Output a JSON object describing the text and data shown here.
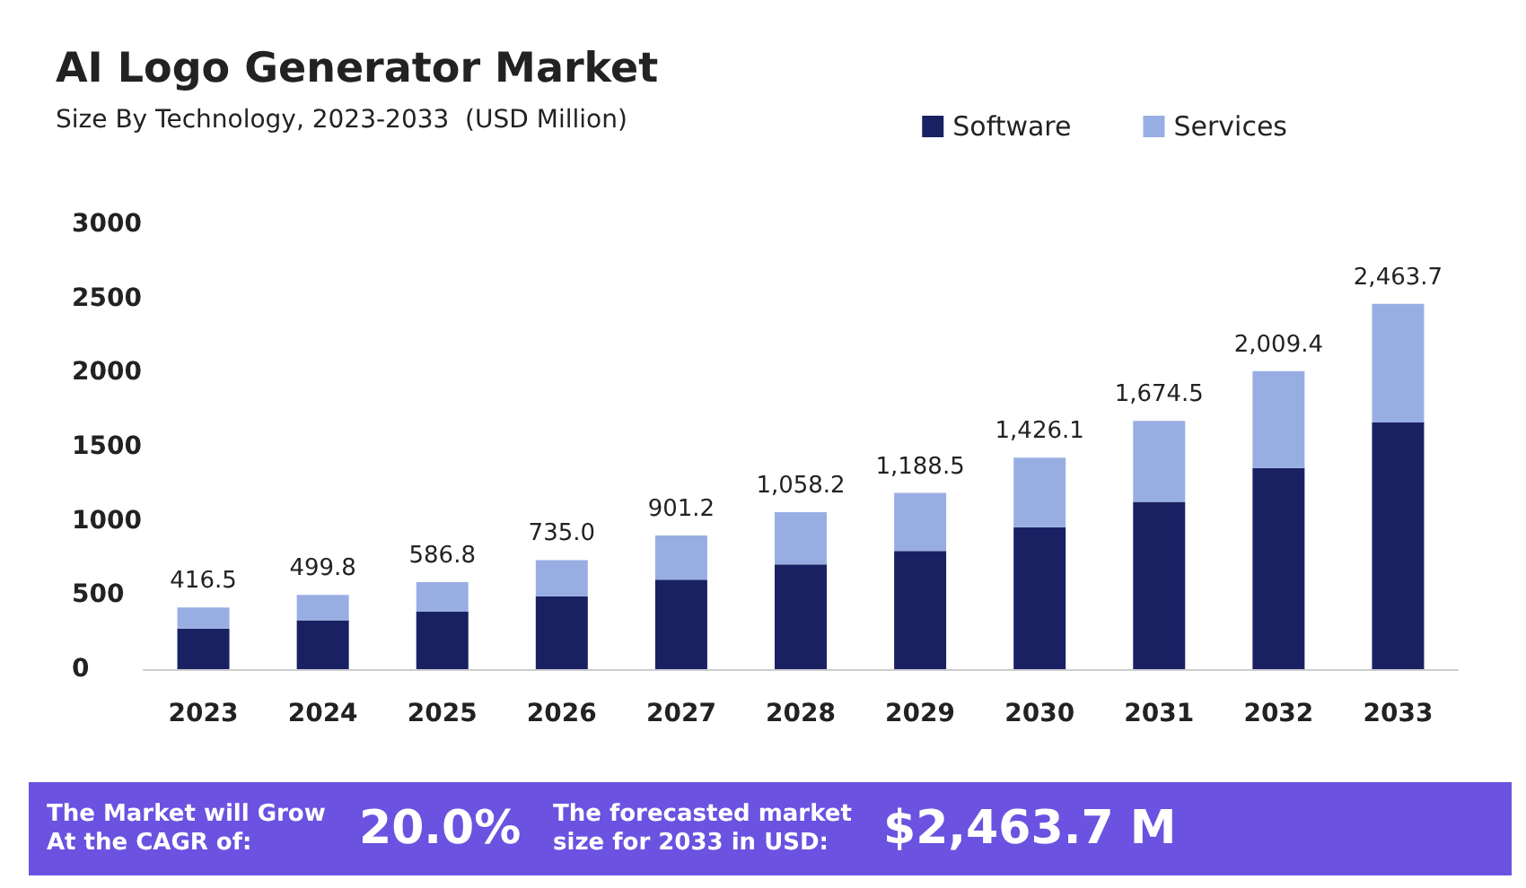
{
  "chart_data": {
    "type": "bar",
    "title": "AI Logo Generator Market",
    "subtitle": "Size By Technology, 2023-2033  (USD Million)",
    "categories": [
      "2023",
      "2024",
      "2025",
      "2026",
      "2027",
      "2028",
      "2029",
      "2030",
      "2031",
      "2032",
      "2033"
    ],
    "stacked": true,
    "series": [
      {
        "name": "Software",
        "color": "#1a2163",
        "values": [
          273,
          330,
          387,
          490,
          604,
          706,
          797,
          957,
          1128,
          1356,
          1663
        ]
      },
      {
        "name": "Services",
        "color": "#98aee3",
        "values": [
          143.5,
          169.8,
          199.8,
          245,
          297.2,
          352.2,
          391.5,
          469.1,
          546.5,
          653.4,
          800.7
        ]
      }
    ],
    "totals": [
      "416.5",
      "499.8",
      "586.8",
      "735.0",
      "901.2",
      "1,058.2",
      "1,188.5",
      "1,426.1",
      "1,674.5",
      "2,009.4",
      "2,463.7"
    ],
    "ylim": [
      0,
      3000
    ],
    "yticks": [
      0,
      500,
      1000,
      1500,
      2000,
      2500,
      3000
    ],
    "grid": false,
    "legend": "top right",
    "annotations": [
      "The Market will Grow At the CAGR of:",
      "20.0%",
      "The forecasted market size for 2033 in USD:",
      "$2,463.7 M"
    ]
  }
}
